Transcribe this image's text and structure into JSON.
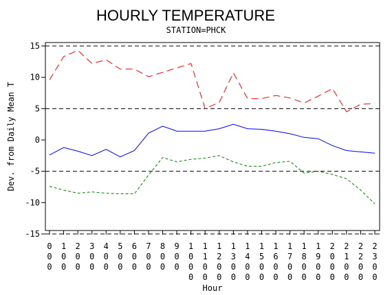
{
  "chart_data": {
    "type": "line",
    "title": "HOURLY TEMPERATURE",
    "subtitle": "STATION=PHCK",
    "xlabel": "Hour",
    "ylabel": "Dev. from Daily Mean T",
    "ylim": [
      -15,
      15
    ],
    "yticks": [
      -15,
      -10,
      -5,
      0,
      5,
      10,
      15
    ],
    "reference_lines": [
      -15,
      -5,
      5,
      15
    ],
    "x": [
      "000",
      "100",
      "200",
      "300",
      "400",
      "500",
      "600",
      "700",
      "800",
      "900",
      "1000",
      "1100",
      "1200",
      "1300",
      "1400",
      "1500",
      "1600",
      "1700",
      "1800",
      "1900",
      "2000",
      "2100",
      "2200",
      "2300"
    ],
    "series": [
      {
        "color": "#ff0000",
        "dash": "long-dash",
        "values": [
          9.6,
          13.3,
          14.3,
          12.2,
          12.8,
          11.3,
          11.3,
          10.1,
          10.8,
          11.5,
          12.2,
          5.0,
          6.0,
          10.7,
          6.6,
          6.6,
          7.1,
          6.7,
          5.9,
          7.0,
          8.2,
          4.5,
          5.7,
          5.8
        ]
      },
      {
        "color": "#0000ff",
        "dash": "solid",
        "values": [
          -2.4,
          -1.2,
          -1.8,
          -2.5,
          -1.5,
          -2.7,
          -1.7,
          1.1,
          2.2,
          1.4,
          1.4,
          1.4,
          1.8,
          2.5,
          1.8,
          1.7,
          1.4,
          1.0,
          0.4,
          0.2,
          -0.9,
          -1.7,
          -1.9,
          -2.1
        ]
      },
      {
        "color": "#008000",
        "dash": "short-dash",
        "values": [
          -7.4,
          -8.0,
          -8.5,
          -8.3,
          -8.5,
          -8.6,
          -8.6,
          -5.6,
          -2.8,
          -3.5,
          -3.1,
          -2.9,
          -2.5,
          -3.5,
          -4.2,
          -4.2,
          -3.6,
          -3.4,
          -5.3,
          -5.0,
          -5.5,
          -6.2,
          -8.0,
          -10.2
        ]
      }
    ]
  }
}
